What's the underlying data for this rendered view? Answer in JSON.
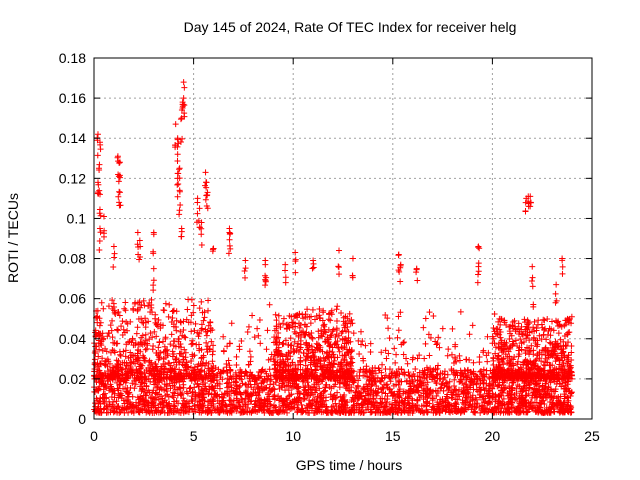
{
  "chart_data": {
    "type": "scatter",
    "title": "Day 145 of 2024, Rate Of TEC Index for receiver helg",
    "xlabel": "GPS time / hours",
    "ylabel": "ROTI / TECUs",
    "xlim": [
      0,
      25
    ],
    "ylim": [
      0,
      0.18
    ],
    "x_ticks": [
      0,
      5,
      10,
      15,
      20,
      25
    ],
    "x_tick_labels": [
      "0",
      "5",
      "10",
      "15",
      "20",
      "25"
    ],
    "y_ticks": [
      0,
      0.02,
      0.04,
      0.06,
      0.08,
      0.1,
      0.12,
      0.14,
      0.16,
      0.18
    ],
    "y_tick_labels": [
      "0",
      "0.02",
      "0.04",
      "0.06",
      "0.08",
      "0.1",
      "0.12",
      "0.14",
      "0.16",
      "0.18"
    ],
    "grid": true,
    "marker": "plus",
    "color": "#ff0000",
    "data_end_hour": 24,
    "baseline_bands": [
      {
        "x": [
          0,
          24
        ],
        "y": [
          0.003,
          0.025
        ]
      },
      {
        "x": [
          0,
          6
        ],
        "y": [
          0.02,
          0.06
        ]
      },
      {
        "x": [
          9,
          13
        ],
        "y": [
          0.02,
          0.055
        ]
      },
      {
        "x": [
          20,
          24
        ],
        "y": [
          0.02,
          0.05
        ]
      }
    ],
    "peaks": [
      {
        "x": 0.2,
        "y": 0.142
      },
      {
        "x": 0.3,
        "y": 0.138
      },
      {
        "x": 0.25,
        "y": 0.125
      },
      {
        "x": 0.2,
        "y": 0.118
      },
      {
        "x": 0.3,
        "y": 0.112
      },
      {
        "x": 0.3,
        "y": 0.095
      },
      {
        "x": 0.5,
        "y": 0.101
      },
      {
        "x": 1.2,
        "y": 0.131
      },
      {
        "x": 1.3,
        "y": 0.128
      },
      {
        "x": 1.25,
        "y": 0.121
      },
      {
        "x": 1.3,
        "y": 0.113
      },
      {
        "x": 1.0,
        "y": 0.086
      },
      {
        "x": 2.2,
        "y": 0.093
      },
      {
        "x": 2.3,
        "y": 0.089
      },
      {
        "x": 3.0,
        "y": 0.093
      },
      {
        "x": 3.0,
        "y": 0.075
      },
      {
        "x": 4.1,
        "y": 0.147
      },
      {
        "x": 4.2,
        "y": 0.14
      },
      {
        "x": 4.2,
        "y": 0.132
      },
      {
        "x": 4.3,
        "y": 0.125
      },
      {
        "x": 4.2,
        "y": 0.12
      },
      {
        "x": 4.3,
        "y": 0.114
      },
      {
        "x": 4.4,
        "y": 0.15
      },
      {
        "x": 4.45,
        "y": 0.158
      },
      {
        "x": 4.5,
        "y": 0.16
      },
      {
        "x": 4.5,
        "y": 0.168
      },
      {
        "x": 4.4,
        "y": 0.095
      },
      {
        "x": 5.2,
        "y": 0.11
      },
      {
        "x": 5.3,
        "y": 0.105
      },
      {
        "x": 5.4,
        "y": 0.098
      },
      {
        "x": 5.6,
        "y": 0.123
      },
      {
        "x": 5.65,
        "y": 0.118
      },
      {
        "x": 5.7,
        "y": 0.113
      },
      {
        "x": 6.0,
        "y": 0.085
      },
      {
        "x": 6.8,
        "y": 0.095
      },
      {
        "x": 6.8,
        "y": 0.093
      },
      {
        "x": 7.6,
        "y": 0.079
      },
      {
        "x": 8.6,
        "y": 0.079
      },
      {
        "x": 8.6,
        "y": 0.077
      },
      {
        "x": 9.6,
        "y": 0.077
      },
      {
        "x": 10.1,
        "y": 0.083
      },
      {
        "x": 11.0,
        "y": 0.079
      },
      {
        "x": 12.3,
        "y": 0.084
      },
      {
        "x": 13.0,
        "y": 0.08
      },
      {
        "x": 15.3,
        "y": 0.082
      },
      {
        "x": 15.4,
        "y": 0.077
      },
      {
        "x": 16.2,
        "y": 0.075
      },
      {
        "x": 19.3,
        "y": 0.086
      },
      {
        "x": 19.3,
        "y": 0.076
      },
      {
        "x": 21.8,
        "y": 0.111
      },
      {
        "x": 21.9,
        "y": 0.111
      },
      {
        "x": 21.7,
        "y": 0.11
      },
      {
        "x": 22.0,
        "y": 0.076
      },
      {
        "x": 23.2,
        "y": 0.067
      },
      {
        "x": 23.5,
        "y": 0.08
      }
    ]
  }
}
